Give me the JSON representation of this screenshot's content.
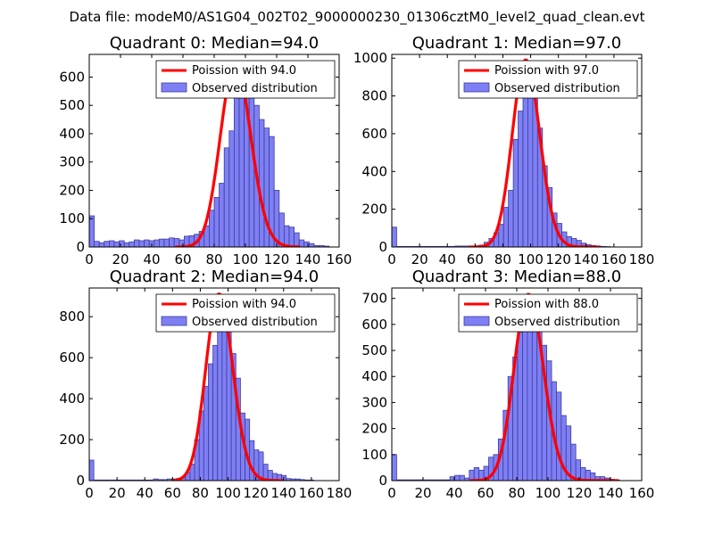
{
  "figure": {
    "suptitle": "Data file: modeM0/AS1G04_002T02_9000000230_01306cztM0_level2_quad_clean.evt"
  },
  "colors": {
    "bar_fill": "#7f7ff5",
    "bar_edge": "#3c3c9a",
    "poisson_line": "#ff0000"
  },
  "chart_data": [
    {
      "type": "bar",
      "title": "Quadrant 0: Median=94.0",
      "xlim": [
        0,
        160
      ],
      "ylim": [
        0,
        680
      ],
      "xticks": [
        0,
        20,
        40,
        60,
        80,
        100,
        120,
        140,
        160
      ],
      "yticks": [
        0,
        100,
        200,
        300,
        400,
        500,
        600
      ],
      "bin_width": 3.2,
      "series": [
        {
          "name": "Observed distribution",
          "x": [
            0,
            3.2,
            6.4,
            9.6,
            12.8,
            16,
            19.2,
            22.4,
            25.6,
            28.8,
            32,
            35.2,
            38.4,
            41.6,
            44.8,
            48,
            51.2,
            54.4,
            57.6,
            60.8,
            64,
            67.2,
            70.4,
            73.6,
            76.8,
            80,
            83.2,
            86.4,
            89.6,
            92.8,
            96,
            99.2,
            102.4,
            105.6,
            108.8,
            112,
            115.2,
            118.4,
            121.6,
            124.8,
            128,
            131.2,
            134.4,
            137.6,
            140.8,
            144,
            147.2,
            150.4
          ],
          "values": [
            110,
            20,
            15,
            20,
            22,
            18,
            22,
            15,
            18,
            25,
            22,
            25,
            22,
            25,
            28,
            28,
            32,
            30,
            25,
            38,
            40,
            45,
            55,
            75,
            130,
            175,
            225,
            350,
            410,
            530,
            640,
            645,
            580,
            500,
            450,
            420,
            390,
            200,
            120,
            75,
            70,
            50,
            25,
            18,
            12,
            5,
            5,
            3
          ]
        },
        {
          "name": "Poission with 94.0",
          "lambda": 94.0,
          "peak": 650,
          "x_range": [
            55,
            135
          ]
        }
      ],
      "legend": [
        "Poission with 94.0",
        "Observed distribution"
      ],
      "legend_location": "upper-right"
    },
    {
      "type": "bar",
      "title": "Quadrant 1: Median=97.0",
      "xlim": [
        0,
        180
      ],
      "ylim": [
        0,
        1020
      ],
      "xticks": [
        0,
        20,
        40,
        60,
        80,
        100,
        120,
        140,
        160,
        180
      ],
      "yticks": [
        0,
        200,
        400,
        600,
        800,
        1000
      ],
      "bin_width": 3.5,
      "series": [
        {
          "name": "Observed distribution",
          "x": [
            0,
            3.5,
            7,
            10.5,
            14,
            17.5,
            21,
            24.5,
            28,
            31.5,
            35,
            38.5,
            42,
            45.5,
            49,
            52.5,
            56,
            59.5,
            63,
            66.5,
            70,
            73.5,
            77,
            80.5,
            84,
            87.5,
            91,
            94.5,
            98,
            101.5,
            105,
            108.5,
            112,
            115.5,
            119,
            122.5,
            126,
            129.5,
            133,
            136.5,
            140,
            143.5,
            147,
            150.5,
            154
          ],
          "values": [
            105,
            3,
            3,
            3,
            3,
            3,
            3,
            3,
            3,
            3,
            3,
            3,
            3,
            5,
            5,
            5,
            5,
            5,
            10,
            25,
            45,
            75,
            120,
            210,
            300,
            570,
            720,
            940,
            975,
            830,
            630,
            430,
            315,
            180,
            125,
            80,
            55,
            45,
            35,
            20,
            12,
            8,
            5,
            3,
            2
          ]
        },
        {
          "name": "Poission with 97.0",
          "lambda": 97.0,
          "peak": 990,
          "x_range": [
            55,
            150
          ]
        }
      ],
      "legend": [
        "Poission with 97.0",
        "Observed distribution"
      ],
      "legend_location": "upper-right"
    },
    {
      "type": "bar",
      "title": "Quadrant 2: Median=94.0",
      "xlim": [
        0,
        180
      ],
      "ylim": [
        0,
        940
      ],
      "xticks": [
        0,
        20,
        40,
        60,
        80,
        100,
        120,
        140,
        160,
        180
      ],
      "yticks": [
        0,
        200,
        400,
        600,
        800
      ],
      "bin_width": 3.3,
      "series": [
        {
          "name": "Observed distribution",
          "x": [
            0,
            3.3,
            6.6,
            9.9,
            13.2,
            16.5,
            19.8,
            23.1,
            26.4,
            29.7,
            33,
            36.3,
            39.6,
            42.9,
            46.2,
            49.5,
            52.8,
            56.1,
            59.4,
            62.7,
            66,
            69.3,
            72.6,
            75.9,
            79.2,
            82.5,
            85.8,
            89.1,
            92.4,
            95.7,
            99,
            102.3,
            105.6,
            108.9,
            112.2,
            115.5,
            118.8,
            122.1,
            125.4,
            128.7,
            132,
            135.3,
            138.6,
            141.9,
            145.2,
            148.5,
            151.8,
            155.1,
            158.4
          ],
          "values": [
            100,
            3,
            3,
            3,
            3,
            3,
            3,
            3,
            3,
            3,
            3,
            3,
            3,
            3,
            8,
            5,
            5,
            8,
            8,
            10,
            15,
            40,
            80,
            200,
            340,
            460,
            570,
            660,
            780,
            905,
            810,
            620,
            500,
            330,
            300,
            195,
            150,
            140,
            80,
            50,
            35,
            30,
            25,
            10,
            8,
            8,
            5,
            3,
            3
          ]
        },
        {
          "name": "Poission with 94.0",
          "lambda": 94.0,
          "peak": 910,
          "x_range": [
            60,
            140
          ]
        }
      ],
      "legend": [
        "Poission with 94.0",
        "Observed distribution"
      ],
      "legend_location": "upper-right"
    },
    {
      "type": "bar",
      "title": "Quadrant 3: Median=88.0",
      "xlim": [
        0,
        160
      ],
      "ylim": [
        0,
        740
      ],
      "xticks": [
        0,
        20,
        40,
        60,
        80,
        100,
        120,
        140,
        160
      ],
      "yticks": [
        0,
        100,
        200,
        300,
        400,
        500,
        600,
        700
      ],
      "bin_width": 3.1,
      "series": [
        {
          "name": "Observed distribution",
          "x": [
            0,
            3.1,
            6.2,
            9.3,
            12.4,
            15.5,
            18.6,
            21.7,
            24.8,
            27.9,
            31,
            34.1,
            37.2,
            40.3,
            43.4,
            46.5,
            49.6,
            52.7,
            55.8,
            58.9,
            62,
            65.1,
            68.2,
            71.3,
            74.4,
            77.5,
            80.6,
            83.7,
            86.8,
            89.9,
            93,
            96.1,
            99.2,
            102.3,
            105.4,
            108.5,
            111.6,
            114.7,
            117.8,
            120.9,
            124,
            127.1,
            130.2,
            133.3,
            136.4,
            139.5,
            142.6
          ],
          "values": [
            100,
            3,
            3,
            3,
            3,
            3,
            3,
            3,
            3,
            3,
            3,
            3,
            15,
            20,
            20,
            10,
            40,
            50,
            40,
            55,
            90,
            100,
            160,
            270,
            400,
            475,
            570,
            600,
            710,
            680,
            610,
            520,
            460,
            380,
            340,
            250,
            210,
            140,
            80,
            50,
            40,
            30,
            15,
            15,
            10,
            5,
            3
          ]
        },
        {
          "name": "Poission with 88.0",
          "lambda": 88.0,
          "peak": 715,
          "x_range": [
            50,
            145
          ]
        }
      ],
      "legend": [
        "Poission with 88.0",
        "Observed distribution"
      ],
      "legend_location": "upper-right"
    }
  ]
}
